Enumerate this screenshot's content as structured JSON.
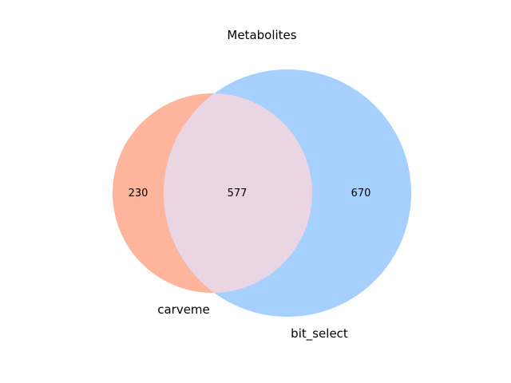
{
  "title": "Metabolites",
  "sets": [
    {
      "name": "carveme",
      "color": "#ffb59b"
    },
    {
      "name": "bit_select",
      "color": "#a6d0ff"
    }
  ],
  "intersection_color": "#ead5e2",
  "regions": {
    "only_a": "230",
    "both": "577",
    "only_b": "670"
  },
  "chart_data": {
    "type": "venn",
    "title": "Metabolites",
    "sets": [
      "carveme",
      "bit_select"
    ],
    "values": {
      "carveme_only": 230,
      "intersection": 577,
      "bit_select_only": 670
    }
  }
}
